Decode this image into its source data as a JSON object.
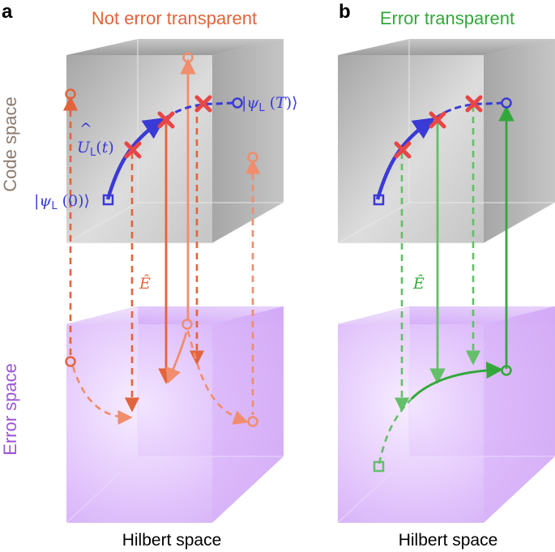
{
  "panels": [
    {
      "letter": "a",
      "title": "Not error transparent",
      "title_color": "#e2643c",
      "footer": "Hilbert space"
    },
    {
      "letter": "b",
      "title": "Error transparent",
      "title_color": "#33a83a",
      "footer": "Hilbert space"
    }
  ],
  "axis_labels": {
    "code_space": "Code space",
    "error_space": "Error space",
    "code_space_color": "#8b7a6e",
    "error_space_color": "#9b55d6"
  },
  "math_labels": {
    "psi_L": "ψ",
    "sub_L": "L",
    "open_ket": "|",
    "close_ket": "⟩",
    "arg_0": " (0)",
    "arg_T_open": " (",
    "arg_T": "T",
    "arg_T_close": ")",
    "U_L": "U",
    "U_hat": "^",
    "U_arg_open": "(",
    "U_arg": "t",
    "U_arg_close": ")",
    "E_hat_a": "Ê",
    "E_hat_b": "Ê"
  },
  "colors": {
    "logical_path": "#3a3ad6",
    "error_marker": "#e84646",
    "error_path_a": "#e2643c",
    "error_path_b": "#33a83a",
    "code_cube": "#8a8a8a",
    "error_cube": "#c99cf2"
  },
  "icons": [
    "error-cross-icon",
    "start-square-icon",
    "end-circle-icon"
  ]
}
